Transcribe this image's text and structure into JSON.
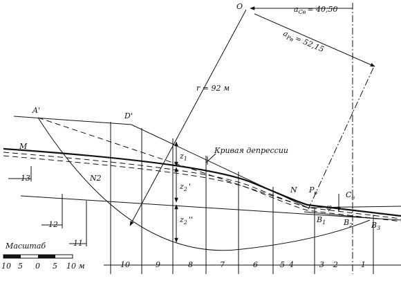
{
  "labels": {
    "o": "O",
    "a_c": {
      "main": "a",
      "sub": "Cв",
      "rest": "= 40,50"
    },
    "a_p": {
      "main": "a",
      "sub": "Pв",
      "rest": "= 52,15"
    },
    "r": "r = 92 м",
    "a_prime": "A'",
    "d_prime": "D'",
    "m": "M",
    "curve": "Кривая депрессии",
    "z1": {
      "main": "z",
      "sub": "1"
    },
    "z2p": {
      "main": "z",
      "sub": "2",
      "rest": "'"
    },
    "z2pp": {
      "main": "z",
      "sub": "2",
      "rest": "''"
    },
    "n": "N",
    "n2": "N2",
    "p_v": {
      "main": "P",
      "sub": "в"
    },
    "c_v": {
      "main": "C",
      "sub": "в"
    },
    "phi": "φ",
    "b1": {
      "main": "B",
      "sub": "1"
    },
    "b2": {
      "main": "B",
      "sub": "2"
    },
    "b3": {
      "main": "B",
      "sub": "3"
    }
  },
  "slices": [
    "13",
    "12",
    "11",
    "10",
    "9",
    "8",
    "7",
    "6",
    "5",
    "4",
    "3",
    "2",
    "1"
  ],
  "scale": {
    "title": "Масштаб",
    "ticks": [
      "10",
      "5",
      "0",
      "5",
      "10 м"
    ]
  }
}
